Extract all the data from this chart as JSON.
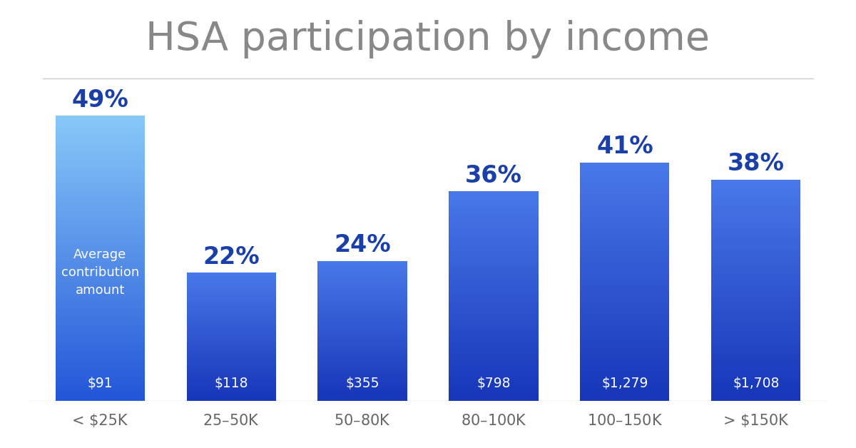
{
  "title": "HSA participation by income",
  "categories": [
    "< $25K",
    "$25–$50K",
    "$50–$80K",
    "$80–$100K",
    "$100–$150K",
    "> $150K"
  ],
  "percentages": [
    49,
    22,
    24,
    36,
    41,
    38
  ],
  "contributions": [
    "$91",
    "$118",
    "$355",
    "$798",
    "$1,279",
    "$1,708"
  ],
  "bar_color_top_0": "#7ec8f5",
  "bar_color_bot_0": "#2255cc",
  "bar_color_top_1": "#4a7fe8",
  "bar_color_bot_1": "#1a3fbb",
  "background_color": "#ffffff",
  "title_color": "#888888",
  "pct_label_color": "#1a3fa8",
  "contrib_label_color": "#ffffff",
  "annotation_label_color": "#ffffff",
  "xlabel_color": "#666666",
  "separator_color": "#cccccc",
  "axis_line_color": "#bbbbbb",
  "ylim_max": 57,
  "bar_width": 0.68,
  "figsize": [
    12.0,
    6.28
  ],
  "dpi": 100
}
